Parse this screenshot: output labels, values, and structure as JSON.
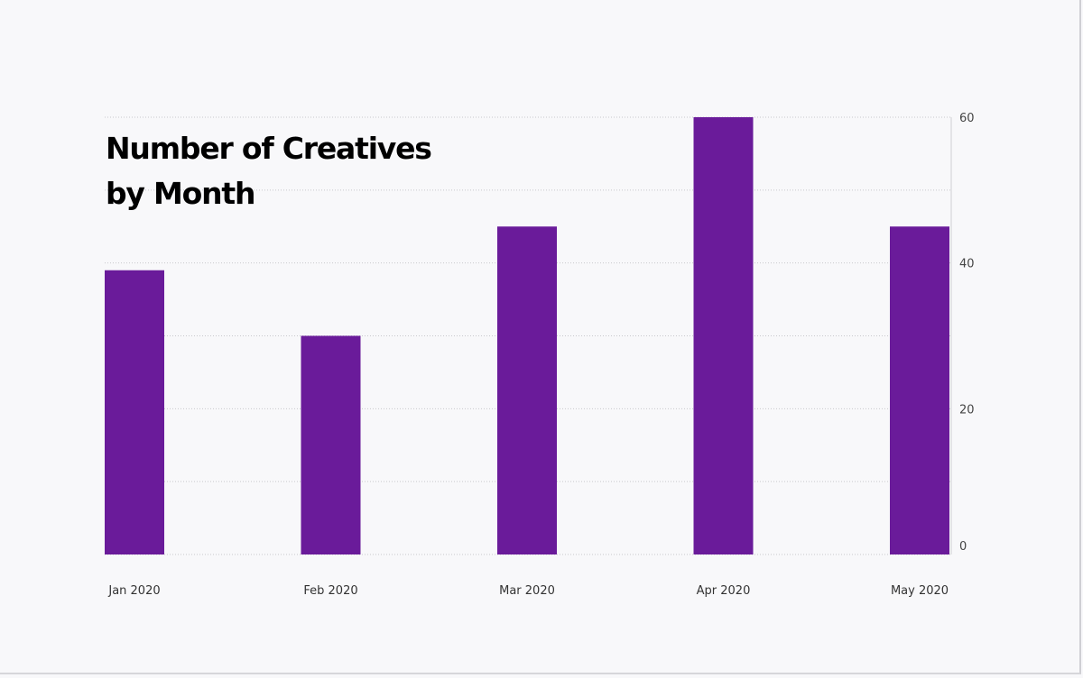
{
  "chart_data": {
    "type": "bar",
    "title_lines": [
      "Number of Creatives",
      "by Month"
    ],
    "categories": [
      "Jan 2020",
      "Feb 2020",
      "Mar 2020",
      "Apr 2020",
      "May 2020"
    ],
    "values": [
      39,
      30,
      45,
      60,
      45
    ],
    "ylim": [
      0,
      60
    ],
    "y_ticks": [
      0,
      20,
      40,
      60
    ],
    "y_axis_side": "right",
    "grid": true,
    "bar_color": "#6a1b9a",
    "xlabel": "",
    "ylabel": ""
  }
}
